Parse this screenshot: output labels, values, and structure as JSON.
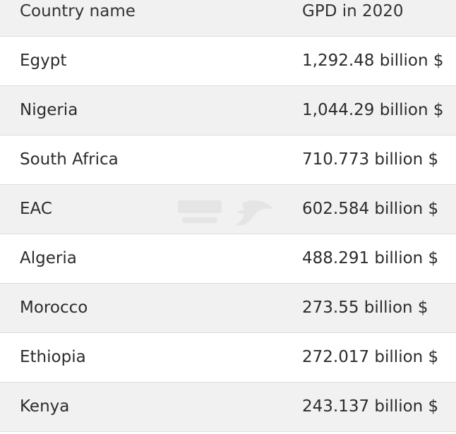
{
  "table": {
    "headers": {
      "country": "Country name",
      "gdp": "GPD in 2020"
    },
    "rows": [
      {
        "country": "Egypt",
        "gdp": "1,292.48 billion $"
      },
      {
        "country": "Nigeria",
        "gdp": "1,044.29 billion $"
      },
      {
        "country": "South Africa",
        "gdp": "710.773 billion $"
      },
      {
        "country": "EAC",
        "gdp": "602.584 billion $"
      },
      {
        "country": "Algeria",
        "gdp": "488.291 billion $"
      },
      {
        "country": "Morocco",
        "gdp": "273.55 billion $"
      },
      {
        "country": "Ethiopia",
        "gdp": "272.017 billion $"
      },
      {
        "country": "Kenya",
        "gdp": "243.137 billion $"
      }
    ]
  },
  "watermark": {
    "icon": "bird-logo-icon"
  }
}
